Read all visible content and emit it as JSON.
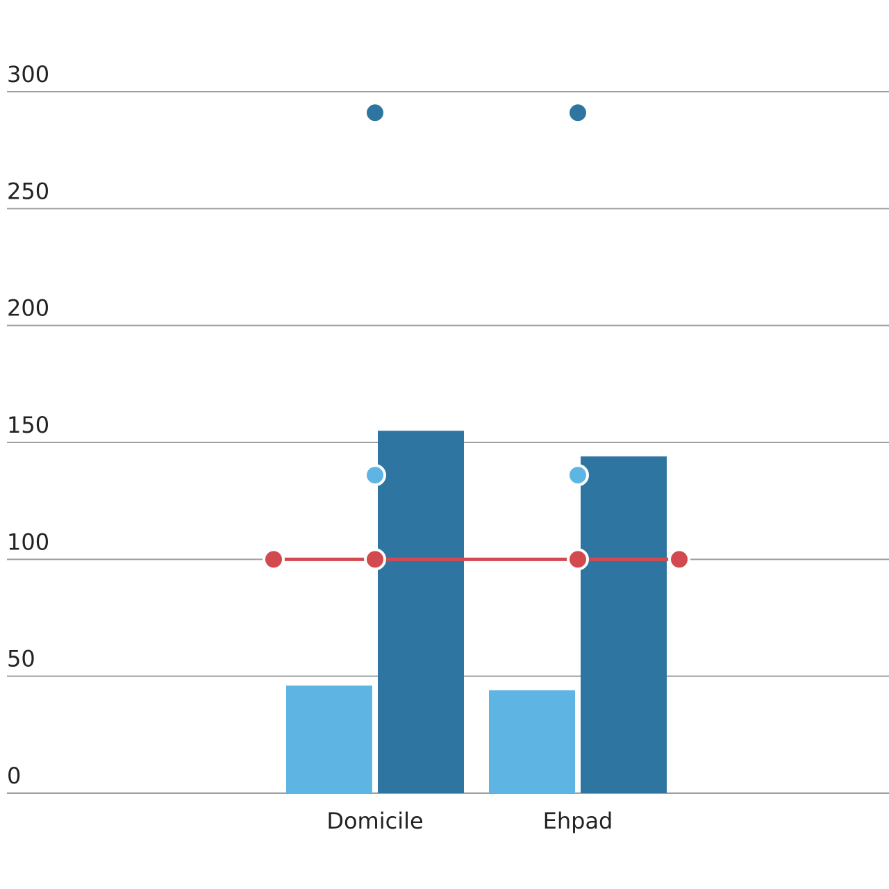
{
  "chart_data": {
    "type": "bar",
    "categories": [
      "Domicile",
      "Ehpad"
    ],
    "series": [
      {
        "type": "bar",
        "color": "#5EB5E3",
        "values": [
          46,
          44
        ]
      },
      {
        "type": "bar",
        "color": "#2E76A1",
        "values": [
          155,
          144
        ]
      }
    ],
    "markers": [
      {
        "color": "#2E76A1",
        "values": [
          291,
          291
        ]
      },
      {
        "color": "#5EB5E3",
        "values": [
          136,
          136
        ]
      }
    ],
    "reference_line": {
      "color": "#D24A4F",
      "value": 100,
      "x": [
        -0.5,
        0,
        1,
        1.5
      ]
    },
    "y_ticks": [
      "0",
      "50",
      "100",
      "150",
      "200",
      "250",
      "300"
    ],
    "ylim": [
      0,
      300
    ],
    "grid": true,
    "legend": "none"
  }
}
